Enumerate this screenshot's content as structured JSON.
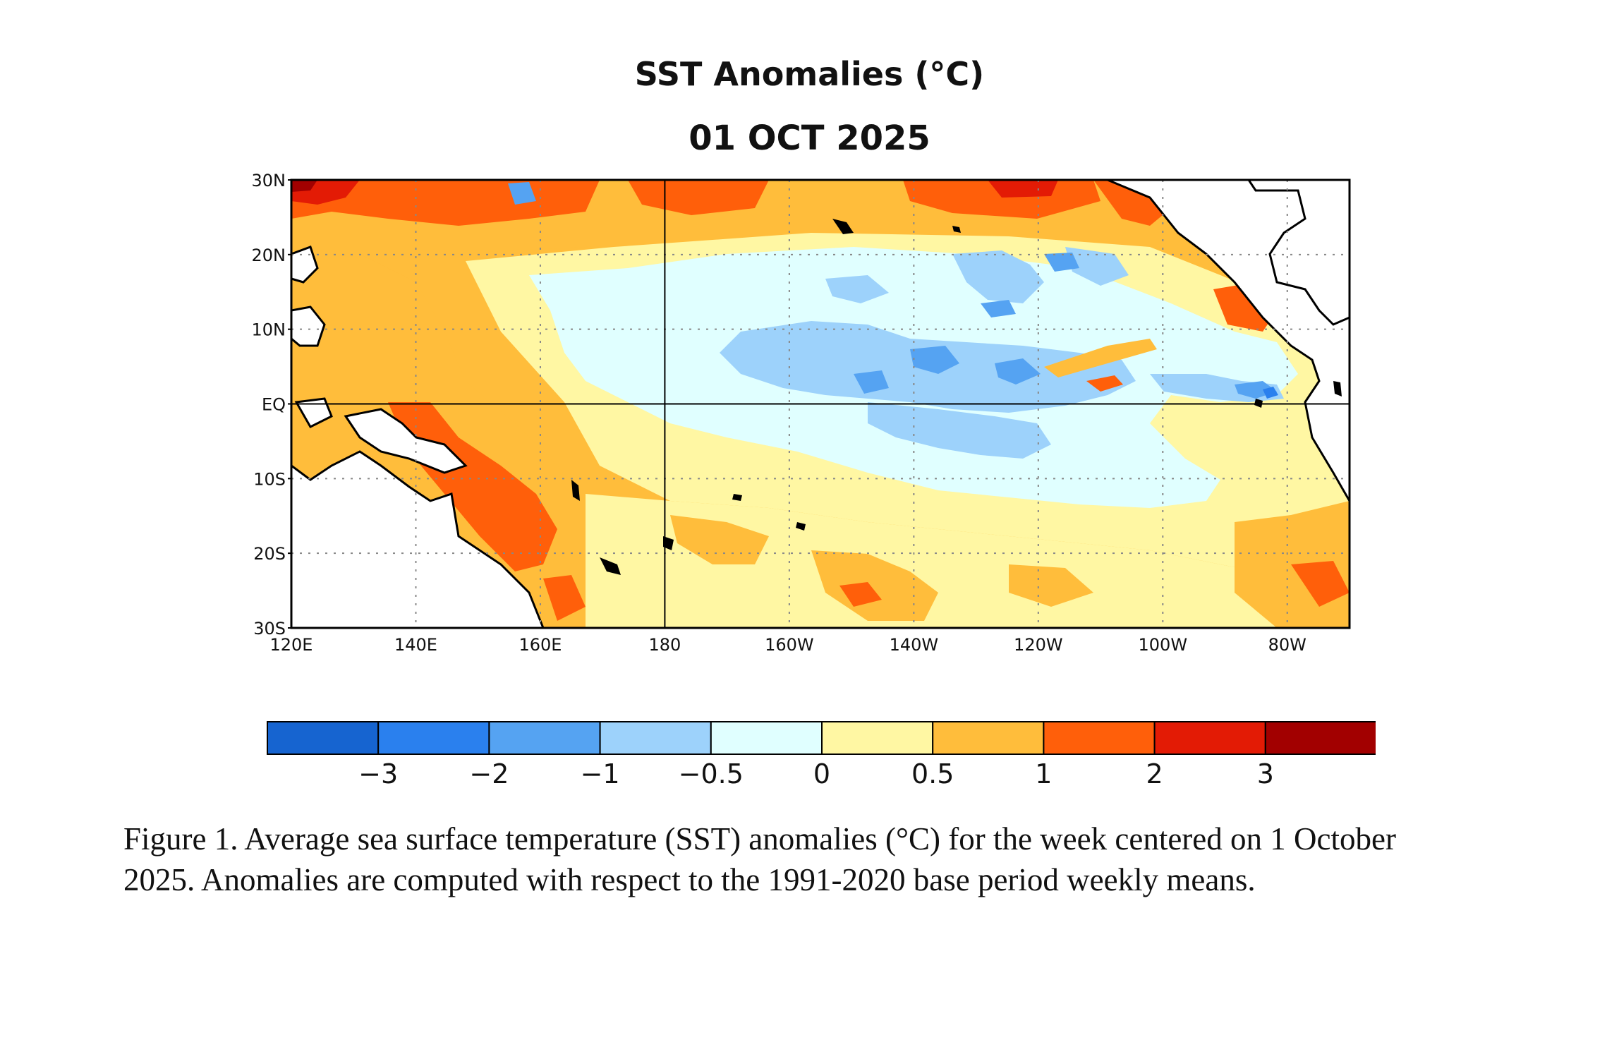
{
  "title": "SST Anomalies (°C)",
  "date": "01 OCT 2025",
  "map": {
    "lat_labels": [
      "30N",
      "20N",
      "10N",
      "EQ",
      "10S",
      "20S",
      "30S"
    ],
    "lon_labels": [
      "120E",
      "140E",
      "160E",
      "180",
      "160W",
      "140W",
      "120W",
      "100W",
      "80W"
    ],
    "lon_range_deg_east": [
      120,
      290
    ],
    "lat_range": [
      -30,
      30
    ]
  },
  "legend": {
    "colors": [
      "#1664d0",
      "#2a80ee",
      "#55a3f2",
      "#9dd2fb",
      "#e0ffff",
      "#fff7a3",
      "#ffbd3b",
      "#ff5f0a",
      "#e31b05",
      "#a20000"
    ],
    "tick_labels": [
      "−3",
      "−2",
      "−1",
      "−0.5",
      "0",
      "0.5",
      "1",
      "2",
      "3"
    ]
  },
  "caption": "Figure 1. Average sea surface temperature (SST) anomalies (°C) for the week centered on 1 October 2025.  Anomalies are computed with respect to the 1991-2020 base period weekly means."
}
